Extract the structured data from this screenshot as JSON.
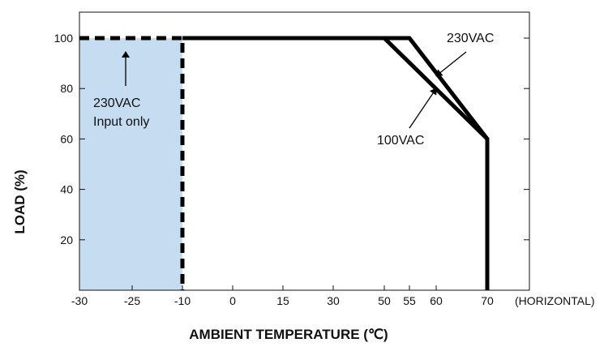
{
  "chart_data": {
    "type": "line",
    "title": "",
    "xlabel": "AMBIENT TEMPERATURE (℃)",
    "ylabel": "LOAD (%)",
    "x_ticks": [
      {
        "value": -30,
        "label": "-30"
      },
      {
        "value": -25,
        "label": "-25"
      },
      {
        "value": -10,
        "label": "-10"
      },
      {
        "value": 0,
        "label": "0"
      },
      {
        "value": 15,
        "label": "15"
      },
      {
        "value": 30,
        "label": "30"
      },
      {
        "value": 50,
        "label": "50"
      },
      {
        "value": 55,
        "label": "55"
      },
      {
        "value": 60,
        "label": "60"
      },
      {
        "value": 70,
        "label": "70"
      }
    ],
    "x_suffix_label": "(HORIZONTAL)",
    "y_ticks": [
      20,
      40,
      60,
      80,
      100
    ],
    "ylim": [
      0,
      115
    ],
    "series": [
      {
        "name": "230VAC",
        "points": [
          [
            -10,
            100
          ],
          [
            55,
            100
          ],
          [
            70,
            60
          ],
          [
            70,
            0
          ]
        ]
      },
      {
        "name": "100VAC",
        "points": [
          [
            -10,
            100
          ],
          [
            50,
            100
          ],
          [
            70,
            60
          ],
          [
            70,
            0
          ]
        ]
      },
      {
        "name": "230VAC Input only",
        "style": "dashed",
        "points": [
          [
            -30,
            100
          ],
          [
            -10,
            100
          ],
          [
            -10,
            0
          ]
        ]
      }
    ],
    "shaded_region": {
      "x": [
        -30,
        -10
      ],
      "y": [
        0,
        100
      ],
      "color": "#c5dcf1"
    },
    "annotations": [
      {
        "text": "230VAC",
        "arrow_to": [
          60,
          85
        ]
      },
      {
        "text": "100VAC",
        "arrow_to": [
          60,
          80
        ]
      },
      {
        "lines": [
          "230VAC",
          "Input only"
        ],
        "arrow_to": [
          -29,
          96
        ]
      }
    ],
    "grid": false
  }
}
